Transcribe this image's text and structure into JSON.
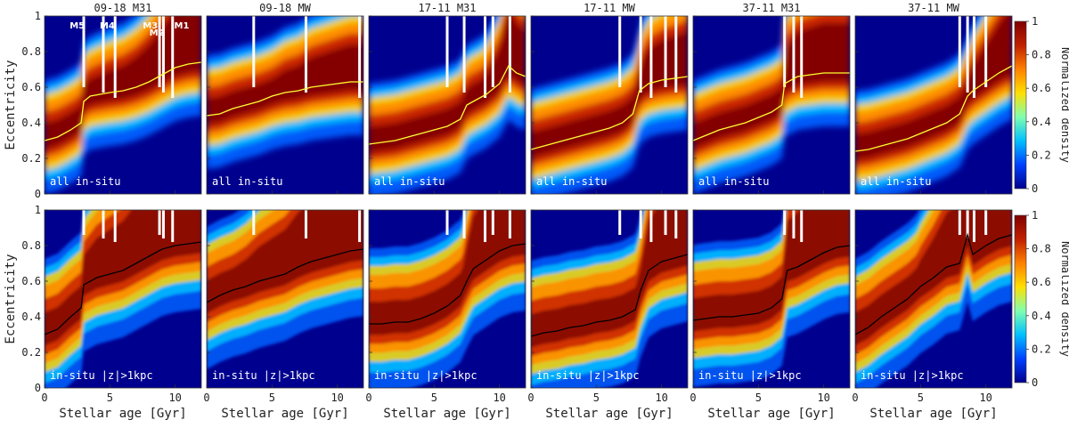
{
  "chart_data": {
    "type": "heatmap",
    "xlabel": "Stellar age [Gyr]",
    "ylabel": "Eccentricity",
    "xlim": [
      0,
      12
    ],
    "ylim": [
      0,
      1
    ],
    "x_ticks": [
      0,
      5,
      10
    ],
    "y_ticks": [
      0,
      0.2,
      0.4,
      0.6,
      0.8,
      1
    ],
    "colorbar": {
      "label": "Normalized density",
      "ticks": [
        0,
        0.2,
        0.4,
        0.6,
        0.8,
        1
      ],
      "colormap": [
        "#00008f",
        "#0040ff",
        "#00c0ff",
        "#80ffb0",
        "#ffe000",
        "#ff8000",
        "#c02000",
        "#800000"
      ]
    },
    "merger_labels": [
      "M5",
      "M4",
      "M3",
      "M2",
      "M1"
    ],
    "colors": {
      "median_top": "#ffff33",
      "median_bottom": "#000000",
      "merger_marker": "#ffffff"
    },
    "rows": [
      {
        "label": "all in-situ"
      },
      {
        "label": "in-situ |z|>1kpc"
      }
    ],
    "panels": [
      {
        "title": "09-18 M31",
        "merger_ages": [
          3.0,
          4.5,
          5.4,
          8.8,
          9.1,
          9.8
        ],
        "median_all_insitu": [
          {
            "x": 0,
            "y": 0.3
          },
          {
            "x": 1,
            "y": 0.32
          },
          {
            "x": 2,
            "y": 0.36
          },
          {
            "x": 2.8,
            "y": 0.4
          },
          {
            "x": 3.0,
            "y": 0.52
          },
          {
            "x": 3.5,
            "y": 0.55
          },
          {
            "x": 5,
            "y": 0.57
          },
          {
            "x": 6,
            "y": 0.58
          },
          {
            "x": 7,
            "y": 0.6
          },
          {
            "x": 8,
            "y": 0.63
          },
          {
            "x": 9,
            "y": 0.67
          },
          {
            "x": 10,
            "y": 0.71
          },
          {
            "x": 11,
            "y": 0.73
          },
          {
            "x": 12,
            "y": 0.74
          }
        ],
        "median_z_gt_1kpc": [
          {
            "x": 0,
            "y": 0.3
          },
          {
            "x": 1,
            "y": 0.33
          },
          {
            "x": 2,
            "y": 0.4
          },
          {
            "x": 2.8,
            "y": 0.45
          },
          {
            "x": 3.0,
            "y": 0.58
          },
          {
            "x": 4,
            "y": 0.62
          },
          {
            "x": 5,
            "y": 0.64
          },
          {
            "x": 6,
            "y": 0.66
          },
          {
            "x": 7,
            "y": 0.7
          },
          {
            "x": 8,
            "y": 0.74
          },
          {
            "x": 9,
            "y": 0.78
          },
          {
            "x": 10,
            "y": 0.8
          },
          {
            "x": 11,
            "y": 0.81
          },
          {
            "x": 12,
            "y": 0.82
          }
        ]
      },
      {
        "title": "09-18 MW",
        "merger_ages": [
          3.6,
          7.6,
          11.7
        ],
        "median_all_insitu": [
          {
            "x": 0,
            "y": 0.44
          },
          {
            "x": 1,
            "y": 0.45
          },
          {
            "x": 2,
            "y": 0.48
          },
          {
            "x": 3,
            "y": 0.5
          },
          {
            "x": 4,
            "y": 0.52
          },
          {
            "x": 5,
            "y": 0.55
          },
          {
            "x": 6,
            "y": 0.57
          },
          {
            "x": 7,
            "y": 0.58
          },
          {
            "x": 8,
            "y": 0.6
          },
          {
            "x": 9,
            "y": 0.61
          },
          {
            "x": 10,
            "y": 0.62
          },
          {
            "x": 11,
            "y": 0.63
          },
          {
            "x": 12,
            "y": 0.63
          }
        ],
        "median_z_gt_1kpc": [
          {
            "x": 0,
            "y": 0.48
          },
          {
            "x": 1,
            "y": 0.52
          },
          {
            "x": 2,
            "y": 0.55
          },
          {
            "x": 3,
            "y": 0.57
          },
          {
            "x": 4,
            "y": 0.6
          },
          {
            "x": 5,
            "y": 0.62
          },
          {
            "x": 6,
            "y": 0.64
          },
          {
            "x": 7,
            "y": 0.68
          },
          {
            "x": 8,
            "y": 0.71
          },
          {
            "x": 9,
            "y": 0.73
          },
          {
            "x": 10,
            "y": 0.75
          },
          {
            "x": 11,
            "y": 0.77
          },
          {
            "x": 12,
            "y": 0.78
          }
        ]
      },
      {
        "title": "17-11 M31",
        "merger_ages": [
          6.0,
          7.3,
          8.9,
          9.5,
          10.8
        ],
        "median_all_insitu": [
          {
            "x": 0,
            "y": 0.28
          },
          {
            "x": 1,
            "y": 0.29
          },
          {
            "x": 2,
            "y": 0.3
          },
          {
            "x": 3,
            "y": 0.32
          },
          {
            "x": 4,
            "y": 0.34
          },
          {
            "x": 5,
            "y": 0.36
          },
          {
            "x": 6,
            "y": 0.38
          },
          {
            "x": 7,
            "y": 0.42
          },
          {
            "x": 7.5,
            "y": 0.5
          },
          {
            "x": 8,
            "y": 0.52
          },
          {
            "x": 9,
            "y": 0.56
          },
          {
            "x": 10,
            "y": 0.62
          },
          {
            "x": 10.7,
            "y": 0.72
          },
          {
            "x": 11.3,
            "y": 0.68
          },
          {
            "x": 12,
            "y": 0.66
          }
        ],
        "median_z_gt_1kpc": [
          {
            "x": 0,
            "y": 0.36
          },
          {
            "x": 1,
            "y": 0.36
          },
          {
            "x": 2,
            "y": 0.37
          },
          {
            "x": 3,
            "y": 0.37
          },
          {
            "x": 4,
            "y": 0.39
          },
          {
            "x": 5,
            "y": 0.42
          },
          {
            "x": 6,
            "y": 0.46
          },
          {
            "x": 7,
            "y": 0.52
          },
          {
            "x": 7.5,
            "y": 0.6
          },
          {
            "x": 8,
            "y": 0.67
          },
          {
            "x": 9,
            "y": 0.72
          },
          {
            "x": 10,
            "y": 0.77
          },
          {
            "x": 11,
            "y": 0.8
          },
          {
            "x": 12,
            "y": 0.81
          }
        ]
      },
      {
        "title": "17-11 MW",
        "merger_ages": [
          6.8,
          8.4,
          9.2,
          10.3,
          11.1
        ],
        "median_all_insitu": [
          {
            "x": 0,
            "y": 0.25
          },
          {
            "x": 1,
            "y": 0.27
          },
          {
            "x": 2,
            "y": 0.29
          },
          {
            "x": 3,
            "y": 0.31
          },
          {
            "x": 4,
            "y": 0.33
          },
          {
            "x": 5,
            "y": 0.35
          },
          {
            "x": 6,
            "y": 0.37
          },
          {
            "x": 7,
            "y": 0.4
          },
          {
            "x": 7.8,
            "y": 0.45
          },
          {
            "x": 8.3,
            "y": 0.58
          },
          {
            "x": 9,
            "y": 0.62
          },
          {
            "x": 10,
            "y": 0.64
          },
          {
            "x": 11,
            "y": 0.65
          },
          {
            "x": 12,
            "y": 0.66
          }
        ],
        "median_z_gt_1kpc": [
          {
            "x": 0,
            "y": 0.29
          },
          {
            "x": 1,
            "y": 0.31
          },
          {
            "x": 2,
            "y": 0.32
          },
          {
            "x": 3,
            "y": 0.34
          },
          {
            "x": 4,
            "y": 0.35
          },
          {
            "x": 5,
            "y": 0.37
          },
          {
            "x": 6,
            "y": 0.38
          },
          {
            "x": 7,
            "y": 0.4
          },
          {
            "x": 8,
            "y": 0.44
          },
          {
            "x": 8.4,
            "y": 0.55
          },
          {
            "x": 9,
            "y": 0.66
          },
          {
            "x": 10,
            "y": 0.71
          },
          {
            "x": 11,
            "y": 0.73
          },
          {
            "x": 12,
            "y": 0.75
          }
        ]
      },
      {
        "title": "37-11 M31",
        "merger_ages": [
          7.0,
          7.7,
          8.3
        ],
        "median_all_insitu": [
          {
            "x": 0,
            "y": 0.3
          },
          {
            "x": 1,
            "y": 0.33
          },
          {
            "x": 2,
            "y": 0.36
          },
          {
            "x": 3,
            "y": 0.38
          },
          {
            "x": 4,
            "y": 0.4
          },
          {
            "x": 5,
            "y": 0.43
          },
          {
            "x": 6,
            "y": 0.46
          },
          {
            "x": 6.8,
            "y": 0.5
          },
          {
            "x": 7.0,
            "y": 0.62
          },
          {
            "x": 8,
            "y": 0.66
          },
          {
            "x": 9,
            "y": 0.67
          },
          {
            "x": 10,
            "y": 0.68
          },
          {
            "x": 11,
            "y": 0.68
          },
          {
            "x": 12,
            "y": 0.68
          }
        ],
        "median_z_gt_1kpc": [
          {
            "x": 0,
            "y": 0.38
          },
          {
            "x": 1,
            "y": 0.39
          },
          {
            "x": 2,
            "y": 0.4
          },
          {
            "x": 3,
            "y": 0.4
          },
          {
            "x": 4,
            "y": 0.41
          },
          {
            "x": 5,
            "y": 0.42
          },
          {
            "x": 6,
            "y": 0.45
          },
          {
            "x": 6.8,
            "y": 0.5
          },
          {
            "x": 7.2,
            "y": 0.66
          },
          {
            "x": 8,
            "y": 0.68
          },
          {
            "x": 9,
            "y": 0.72
          },
          {
            "x": 10,
            "y": 0.76
          },
          {
            "x": 11,
            "y": 0.79
          },
          {
            "x": 12,
            "y": 0.8
          }
        ]
      },
      {
        "title": "37-11 MW",
        "merger_ages": [
          8.0,
          8.6,
          9.1,
          10.0
        ],
        "median_all_insitu": [
          {
            "x": 0,
            "y": 0.24
          },
          {
            "x": 1,
            "y": 0.25
          },
          {
            "x": 2,
            "y": 0.27
          },
          {
            "x": 3,
            "y": 0.29
          },
          {
            "x": 4,
            "y": 0.31
          },
          {
            "x": 5,
            "y": 0.34
          },
          {
            "x": 6,
            "y": 0.37
          },
          {
            "x": 7,
            "y": 0.4
          },
          {
            "x": 8,
            "y": 0.45
          },
          {
            "x": 8.6,
            "y": 0.55
          },
          {
            "x": 9,
            "y": 0.58
          },
          {
            "x": 10,
            "y": 0.63
          },
          {
            "x": 11,
            "y": 0.68
          },
          {
            "x": 12,
            "y": 0.72
          }
        ],
        "median_z_gt_1kpc": [
          {
            "x": 0,
            "y": 0.3
          },
          {
            "x": 1,
            "y": 0.34
          },
          {
            "x": 2,
            "y": 0.4
          },
          {
            "x": 3,
            "y": 0.45
          },
          {
            "x": 4,
            "y": 0.5
          },
          {
            "x": 5,
            "y": 0.57
          },
          {
            "x": 6,
            "y": 0.62
          },
          {
            "x": 7,
            "y": 0.68
          },
          {
            "x": 8,
            "y": 0.7
          },
          {
            "x": 8.6,
            "y": 0.86
          },
          {
            "x": 9,
            "y": 0.75
          },
          {
            "x": 10,
            "y": 0.8
          },
          {
            "x": 11,
            "y": 0.84
          },
          {
            "x": 12,
            "y": 0.86
          }
        ]
      }
    ]
  }
}
